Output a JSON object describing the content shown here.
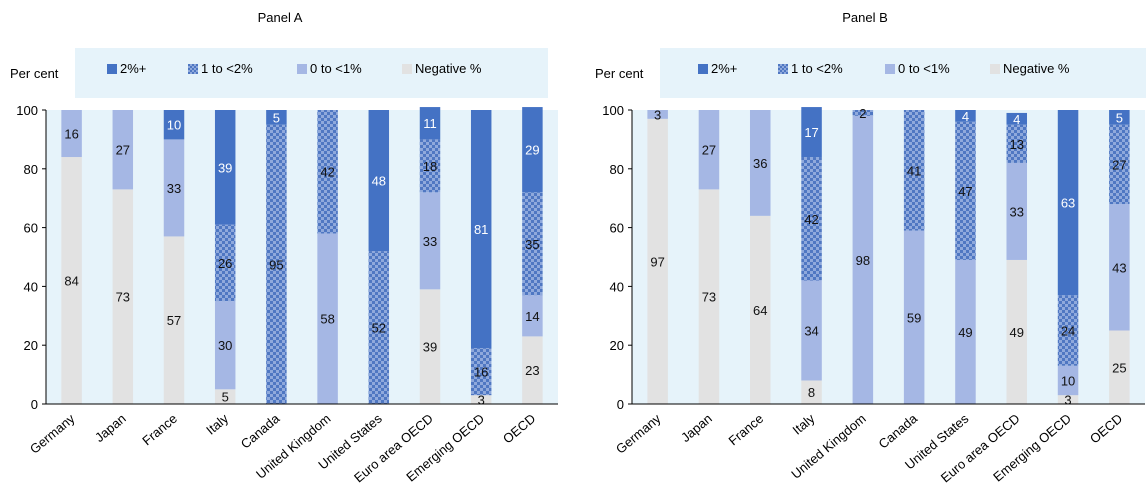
{
  "colors": {
    "bg_band": "#e6f3fa",
    "s2plus": "#4472c4",
    "s1to2": "#5b7fc4",
    "s0to1": "#a5b7e4",
    "negative": "#e2e2e2"
  },
  "chart_data": [
    {
      "type": "bar",
      "stacked": true,
      "title": "Panel A",
      "ylabel": "Per cent",
      "ylim": [
        0,
        100
      ],
      "yticks": [
        0,
        20,
        40,
        60,
        80,
        100
      ],
      "legend": [
        "2%+",
        "1 to <2%",
        "0 to <1%",
        "Negative %"
      ],
      "legend_position": "top",
      "categories": [
        "Germany",
        "Japan",
        "France",
        "Italy",
        "Canada",
        "United Kingdom",
        "United States",
        "Euro area OECD",
        "Emerging OECD",
        "OECD"
      ],
      "series": [
        {
          "name": "Negative %",
          "values": [
            84,
            73,
            57,
            5,
            0,
            0,
            0,
            39,
            3,
            23
          ]
        },
        {
          "name": "0 to <1%",
          "values": [
            16,
            27,
            33,
            30,
            0,
            58,
            0,
            33,
            0,
            14
          ]
        },
        {
          "name": "1 to <2%",
          "values": [
            0,
            0,
            0,
            26,
            95,
            42,
            52,
            18,
            16,
            35
          ]
        },
        {
          "name": "2%+",
          "values": [
            0,
            0,
            10,
            39,
            5,
            0,
            48,
            11,
            81,
            29
          ]
        }
      ]
    },
    {
      "type": "bar",
      "stacked": true,
      "title": "Panel B",
      "ylabel": "Per cent",
      "ylim": [
        0,
        100
      ],
      "yticks": [
        0,
        20,
        40,
        60,
        80,
        100
      ],
      "legend": [
        "2%+",
        "1 to <2%",
        "0 to <1%",
        "Negative %"
      ],
      "legend_position": "top",
      "categories": [
        "Germany",
        "Japan",
        "France",
        "Italy",
        "United Kingdom",
        "Canada",
        "United States",
        "Euro area OECD",
        "Emerging OECD",
        "OECD"
      ],
      "series": [
        {
          "name": "Negative %",
          "values": [
            97,
            73,
            64,
            8,
            0,
            0,
            0,
            49,
            3,
            25
          ]
        },
        {
          "name": "0 to <1%",
          "values": [
            3,
            27,
            36,
            34,
            98,
            59,
            49,
            33,
            10,
            43
          ]
        },
        {
          "name": "1 to <2%",
          "values": [
            0,
            0,
            0,
            42,
            2,
            41,
            47,
            13,
            24,
            27
          ]
        },
        {
          "name": "2%+",
          "values": [
            0,
            0,
            0,
            17,
            0,
            0,
            4,
            4,
            63,
            5
          ]
        }
      ]
    }
  ]
}
